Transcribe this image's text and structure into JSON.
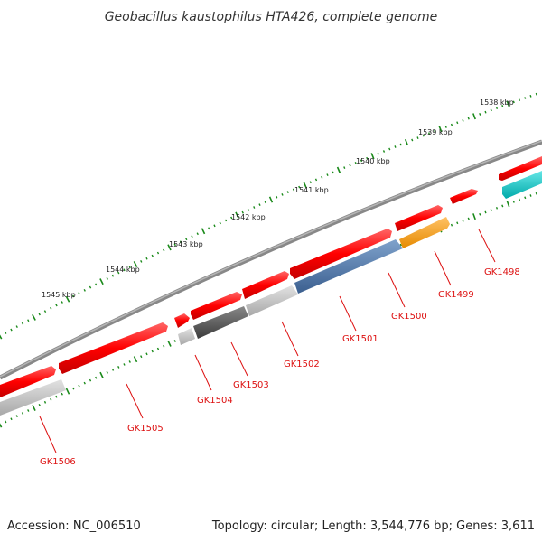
{
  "title": "Geobacillus kaustophilus HTA426, complete genome",
  "footer": {
    "accession": "Accession: NC_006510",
    "summary": "Topology: circular; Length: 3,544,776 bp; Genes: 3,611"
  },
  "ruler": {
    "labels": [
      "1538 kbp",
      "1539 kbp",
      "1540 kbp",
      "1541 kbp",
      "1542 kbp",
      "1543 kbp",
      "1544 kbp",
      "1545 kbp"
    ]
  },
  "genes": [
    {
      "label": "GK1498",
      "color": "#00c8c8"
    },
    {
      "label": "GK1499",
      "color": "#ff9900"
    },
    {
      "label": "GK1500",
      "color": "#4a6fa5"
    },
    {
      "label": "GK1501",
      "color": "#4a6fa5"
    },
    {
      "label": "GK1502",
      "color": "#bbbbbb"
    },
    {
      "label": "GK1503",
      "color": "#555555"
    },
    {
      "label": "GK1504",
      "color": "#aaaaaa"
    },
    {
      "label": "GK1505",
      "color": "#ff0000"
    },
    {
      "label": "GK1506",
      "color": "#bbbbbb"
    }
  ],
  "colors": {
    "backbone": "#777777",
    "forward_strand": "#ff0000",
    "ticks": "#1a8a1a",
    "label": "#dd1111"
  }
}
